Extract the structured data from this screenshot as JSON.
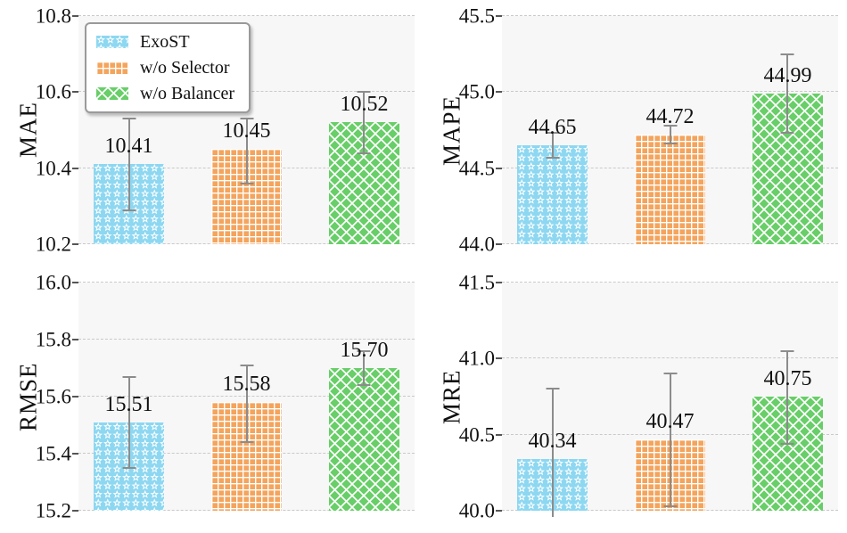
{
  "figure": {
    "kind": "2x2 bar chart grid (ablation study with error bars)"
  },
  "colors": {
    "exost": "#8dd7f1",
    "wo_selector": "#f4a45c",
    "wo_balancer": "#68ce68",
    "pattern_line": "#ffffff",
    "error_bar": "#8c8c8c",
    "gridline": "#c9c9c9",
    "plot_bg": "#f7f7f7",
    "text": "#111111",
    "legend_border": "#9a9a9a"
  },
  "legend": {
    "position": "top-left subplot, upper left",
    "items": [
      {
        "label": "ExoST",
        "pattern": "star",
        "swatch_icon": "star-hatch-swatch"
      },
      {
        "label": "w/o Selector",
        "pattern": "grid",
        "swatch_icon": "grid-hatch-swatch"
      },
      {
        "label": "w/o Balancer",
        "pattern": "cross",
        "swatch_icon": "crosshatch-swatch"
      }
    ]
  },
  "chart_data": [
    {
      "type": "bar",
      "ylabel": "MAE",
      "position": "top-left",
      "ylim": [
        10.2,
        10.8
      ],
      "yticks": [
        "10.8",
        "10.6",
        "10.4",
        "10.2"
      ],
      "grid": true,
      "legend_position": "upper-left",
      "has_legend": true,
      "categories": [
        "ExoST",
        "w/o Selector",
        "w/o Balancer"
      ],
      "values": [
        10.41,
        10.45,
        10.52
      ],
      "value_labels": [
        "10.41",
        "10.45",
        "10.52"
      ],
      "error_low": [
        10.29,
        10.36,
        10.44
      ],
      "error_high": [
        10.53,
        10.53,
        10.6
      ]
    },
    {
      "type": "bar",
      "ylabel": "MAPE",
      "position": "top-right",
      "ylim": [
        44.0,
        45.5
      ],
      "yticks": [
        "45.5",
        "45.0",
        "44.5",
        "44.0"
      ],
      "grid": true,
      "has_legend": false,
      "categories": [
        "ExoST",
        "w/o Selector",
        "w/o Balancer"
      ],
      "values": [
        44.65,
        44.72,
        44.99
      ],
      "value_labels": [
        "44.65",
        "44.72",
        "44.99"
      ],
      "error_low": [
        44.57,
        44.66,
        44.73
      ],
      "error_high": [
        44.73,
        44.78,
        45.25
      ]
    },
    {
      "type": "bar",
      "ylabel": "RMSE",
      "position": "bottom-left",
      "ylim": [
        15.2,
        16.0
      ],
      "yticks": [
        "16.0",
        "15.8",
        "15.6",
        "15.4",
        "15.2"
      ],
      "grid": true,
      "has_legend": false,
      "categories": [
        "ExoST",
        "w/o Selector",
        "w/o Balancer"
      ],
      "values": [
        15.51,
        15.58,
        15.7
      ],
      "value_labels": [
        "15.51",
        "15.58",
        "15.70"
      ],
      "error_low": [
        15.35,
        15.44,
        15.64
      ],
      "error_high": [
        15.67,
        15.71,
        15.76
      ]
    },
    {
      "type": "bar",
      "ylabel": "MRE",
      "position": "bottom-right",
      "ylim": [
        40.0,
        41.5
      ],
      "yticks": [
        "41.5",
        "41.0",
        "40.5",
        "40.0"
      ],
      "grid": true,
      "has_legend": false,
      "categories": [
        "ExoST",
        "w/o Selector",
        "w/o Balancer"
      ],
      "values": [
        40.34,
        40.47,
        40.75
      ],
      "value_labels": [
        "40.34",
        "40.47",
        "40.75"
      ],
      "error_low": [
        39.96,
        40.03,
        40.44
      ],
      "error_high": [
        40.8,
        40.9,
        41.05
      ]
    }
  ]
}
